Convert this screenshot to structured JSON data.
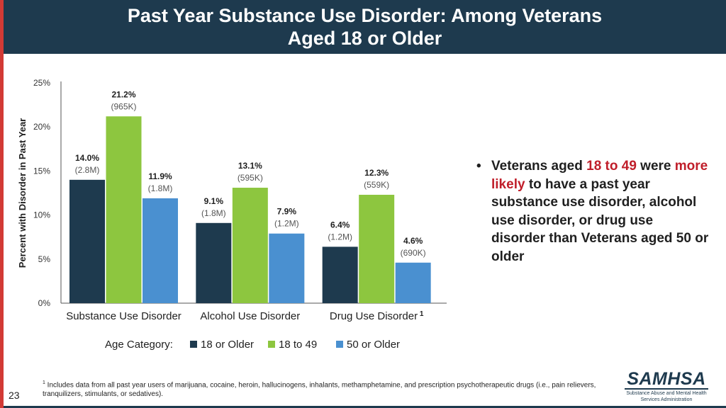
{
  "header": {
    "title_line1": "Past Year Substance Use Disorder: Among Veterans",
    "title_line2": "Aged 18 or Older"
  },
  "colors": {
    "header_bg": "#1e3a4e",
    "accent_red": "#d23a35",
    "series_18_or_older": "#1e3a4e",
    "series_18_to_49": "#8dc63f",
    "series_50_or_older": "#4a90d0"
  },
  "chart_data": {
    "type": "bar",
    "title": "",
    "ylabel": "Percent with Disorder in Past Year",
    "xlabel": "",
    "ylim": [
      0,
      25
    ],
    "yticks": [
      0,
      5,
      10,
      15,
      20,
      25
    ],
    "ytick_labels": [
      "0%",
      "5%",
      "10%",
      "15%",
      "20%",
      "25%"
    ],
    "categories": [
      "Substance Use Disorder",
      "Alcohol Use Disorder",
      "Drug Use Disorder"
    ],
    "category_superscripts": [
      "",
      "",
      "1"
    ],
    "legend_title": "Age Category:",
    "series": [
      {
        "name": "18 or Older",
        "values": [
          14.0,
          9.1,
          6.4
        ],
        "labels": [
          "14.0%",
          "9.1%",
          "6.4%"
        ],
        "counts": [
          "(2.8M)",
          "(1.8M)",
          "(1.2M)"
        ]
      },
      {
        "name": "18 to 49",
        "values": [
          21.2,
          13.1,
          12.3
        ],
        "labels": [
          "21.2%",
          "13.1%",
          "12.3%"
        ],
        "counts": [
          "(965K)",
          "(595K)",
          "(559K)"
        ]
      },
      {
        "name": "50 or Older",
        "values": [
          11.9,
          7.9,
          4.6
        ],
        "labels": [
          "11.9%",
          "7.9%",
          "4.6%"
        ],
        "counts": [
          "(1.8M)",
          "(1.2M)",
          "(690K)"
        ]
      }
    ]
  },
  "bullet": {
    "marker": "•",
    "part1": "Veterans aged ",
    "highlight1": "18 to 49",
    "part2": " were ",
    "highlight2": "more likely",
    "part3": " to have a past year substance use disorder, alcohol use disorder, or drug use disorder than Veterans aged 50 or older"
  },
  "footnote": {
    "marker": "1",
    "text": " Includes data from all past year users of marijuana, cocaine, heroin, hallucinogens, inhalants, methamphetamine, and prescription psychotherapeutic drugs (i.e., pain relievers, tranquilizers, stimulants, or sedatives)."
  },
  "page_number": "23",
  "logo": {
    "name": "SAMHSA",
    "subtitle": "Substance Abuse and Mental Health Services Administration"
  }
}
